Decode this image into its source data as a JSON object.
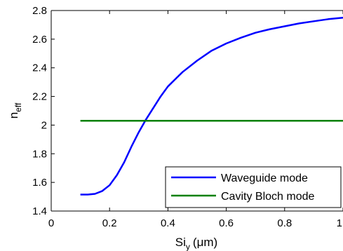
{
  "chart_data": {
    "type": "line",
    "xlabel_main": "Si",
    "xlabel_sub": "y",
    "xlabel_unit": "(μm)",
    "ylabel_main": "n",
    "ylabel_sub": "eff",
    "xlim": [
      0,
      1
    ],
    "ylim": [
      1.4,
      2.8
    ],
    "x_ticks": [
      0,
      0.2,
      0.4,
      0.6,
      0.8,
      1
    ],
    "x_tick_labels": [
      "0",
      "0.2",
      "0.4",
      "0.6",
      "0.8",
      "1"
    ],
    "y_ticks": [
      1.4,
      1.6,
      1.8,
      2.0,
      2.2,
      2.4,
      2.6,
      2.8
    ],
    "y_tick_labels": [
      "1.4",
      "1.6",
      "1.8",
      "2",
      "2.2",
      "2.4",
      "2.6",
      "2.8"
    ],
    "grid": false,
    "legend_position": "bottom-right",
    "series": [
      {
        "name": "Waveguide mode",
        "color": "#0000ff",
        "x": [
          0.1,
          0.125,
          0.15,
          0.175,
          0.2,
          0.225,
          0.25,
          0.275,
          0.3,
          0.325,
          0.35,
          0.375,
          0.4,
          0.45,
          0.5,
          0.55,
          0.6,
          0.65,
          0.7,
          0.75,
          0.8,
          0.85,
          0.9,
          0.95,
          1.0
        ],
        "y": [
          1.515,
          1.515,
          1.52,
          1.54,
          1.58,
          1.65,
          1.74,
          1.85,
          1.95,
          2.04,
          2.12,
          2.2,
          2.27,
          2.37,
          2.45,
          2.52,
          2.57,
          2.61,
          2.645,
          2.67,
          2.69,
          2.71,
          2.725,
          2.74,
          2.75
        ]
      },
      {
        "name": "Cavity Bloch mode",
        "color": "#008000",
        "x": [
          0.1,
          1.0
        ],
        "y": [
          2.03,
          2.03
        ]
      }
    ]
  }
}
